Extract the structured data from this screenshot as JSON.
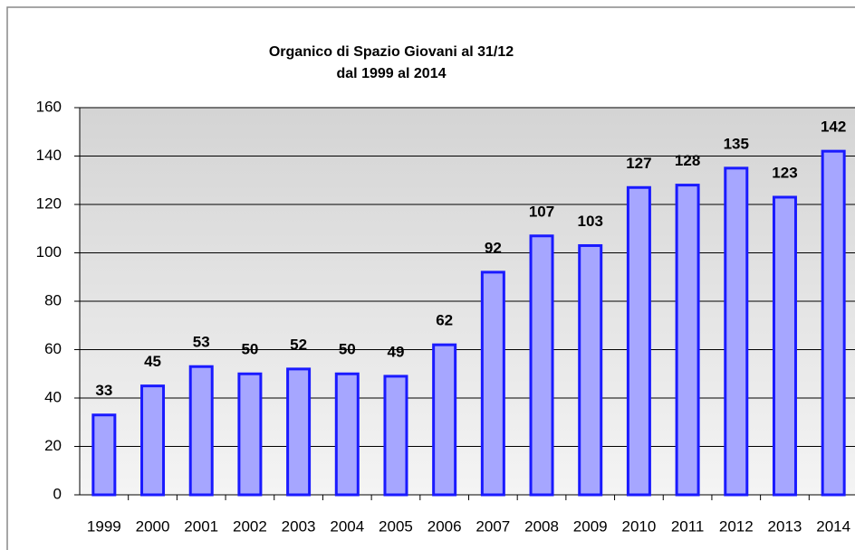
{
  "chart_data": {
    "type": "bar",
    "title": "Organico di Spazio Giovani al 31/12",
    "subtitle": "dal 1999 al 2014",
    "categories": [
      "1999",
      "2000",
      "2001",
      "2002",
      "2003",
      "2004",
      "2005",
      "2006",
      "2007",
      "2008",
      "2009",
      "2010",
      "2011",
      "2012",
      "2013",
      "2014"
    ],
    "values": [
      33,
      45,
      53,
      50,
      52,
      50,
      49,
      62,
      92,
      107,
      103,
      127,
      128,
      135,
      123,
      142
    ],
    "color": "#a6a6ff",
    "edge_color": "#1a1aff",
    "ylim": [
      0,
      160
    ],
    "yticks": [
      0,
      20,
      40,
      60,
      80,
      100,
      120,
      140,
      160
    ],
    "grid": true
  }
}
